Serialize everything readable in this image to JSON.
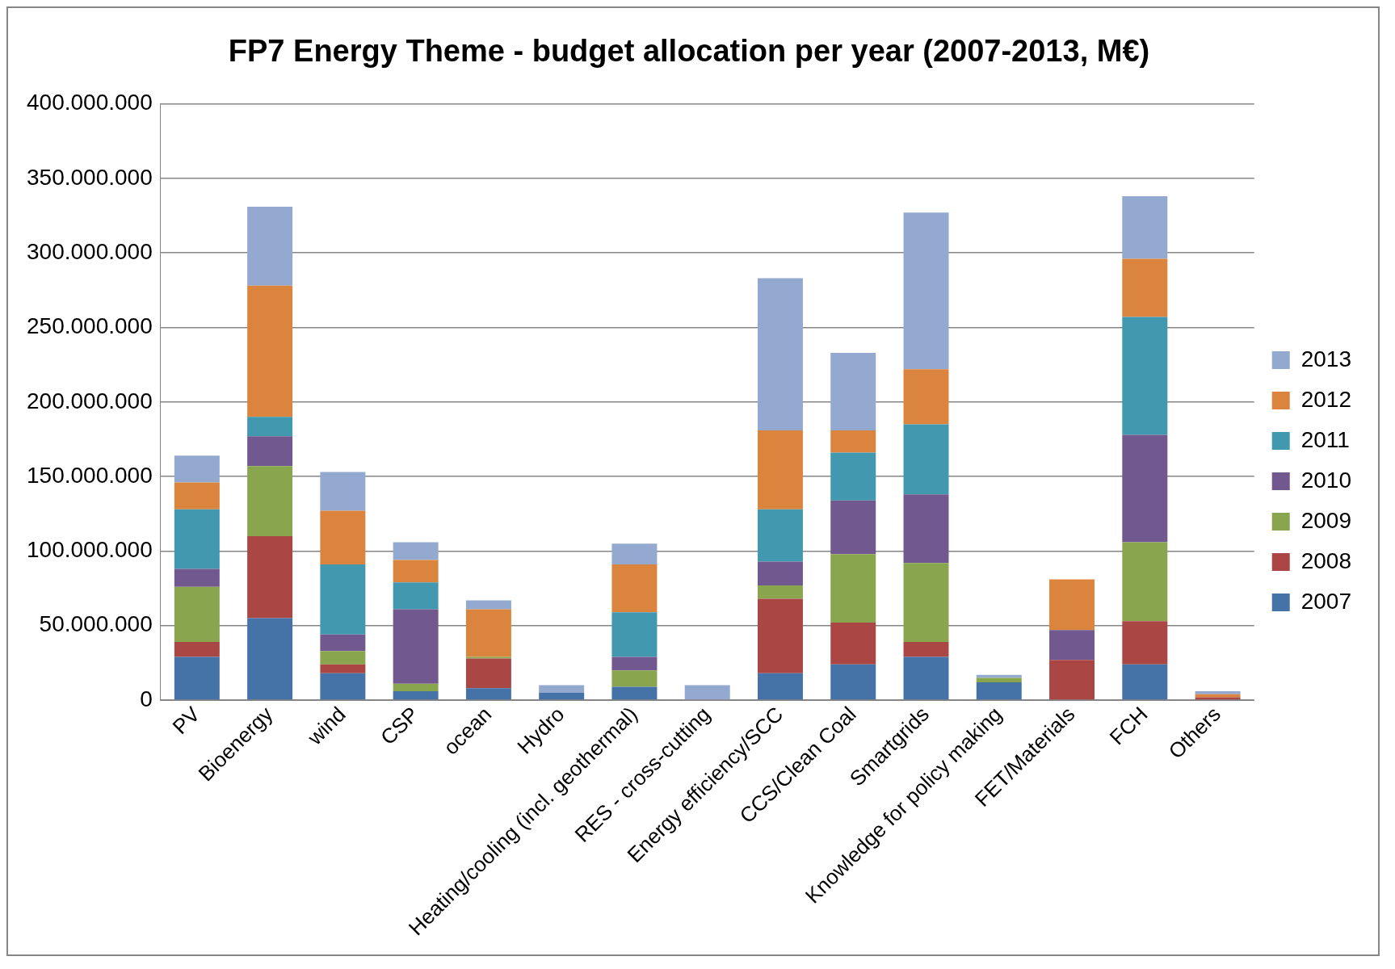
{
  "chart_data": {
    "type": "bar",
    "title": "FP7 Energy Theme - budget allocation per year (2007-2013, M€)",
    "stacked": true,
    "legend": "right",
    "grid": "y",
    "categories": [
      "PV",
      "Bioenergy",
      "wind",
      "CSP",
      "ocean",
      "Hydro",
      "Heating/cooling (incl. geothermal)",
      "RES - cross-cutting",
      "Energy efficiency/SCC",
      "CCS/Clean Coal",
      "Smartgrids",
      "Knowledge for policy making",
      "FET/Materials",
      "FCH",
      "Others"
    ],
    "ylim": [
      0,
      400000000
    ],
    "yticks": [
      0,
      {
        "value": 50000000,
        "label": "50.000.000"
      },
      {
        "value": 100000000,
        "label": "100.000.000"
      },
      {
        "value": 150000000,
        "label": "150.000.000"
      },
      {
        "value": 200000000,
        "label": "200.000.000"
      },
      {
        "value": 250000000,
        "label": "250.000.000"
      },
      {
        "value": 300000000,
        "label": "300.000.000"
      },
      {
        "value": 350000000,
        "label": "350.000.000"
      },
      {
        "value": 400000000,
        "label": "400.000.000"
      }
    ],
    "series": [
      {
        "name": "2007",
        "color": "#4572a7",
        "values": [
          29000000,
          55000000,
          18000000,
          6000000,
          8000000,
          5000000,
          9000000,
          0,
          18000000,
          24000000,
          29000000,
          12000000,
          0,
          24000000,
          0
        ]
      },
      {
        "name": "2008",
        "color": "#aa4643",
        "values": [
          10000000,
          55000000,
          6000000,
          0,
          20000000,
          0,
          0,
          0,
          50000000,
          28000000,
          10000000,
          0,
          27000000,
          29000000,
          2000000
        ]
      },
      {
        "name": "2009",
        "color": "#89a54e",
        "values": [
          37000000,
          47000000,
          9000000,
          5000000,
          1000000,
          0,
          11000000,
          0,
          9000000,
          46000000,
          53000000,
          3000000,
          0,
          53000000,
          0
        ]
      },
      {
        "name": "2010",
        "color": "#71588f",
        "values": [
          12000000,
          20000000,
          11000000,
          50000000,
          0,
          0,
          9000000,
          0,
          16000000,
          36000000,
          46000000,
          0,
          20000000,
          72000000,
          0
        ]
      },
      {
        "name": "2011",
        "color": "#4198af",
        "values": [
          40000000,
          13000000,
          47000000,
          18000000,
          0,
          0,
          30000000,
          0,
          35000000,
          32000000,
          47000000,
          0,
          0,
          79000000,
          0
        ]
      },
      {
        "name": "2012",
        "color": "#db843d",
        "values": [
          18000000,
          88000000,
          36000000,
          15000000,
          32000000,
          0,
          32000000,
          0,
          53000000,
          15000000,
          37000000,
          0,
          34000000,
          39000000,
          2000000
        ]
      },
      {
        "name": "2013",
        "color": "#93a9cf",
        "values": [
          18000000,
          53000000,
          26000000,
          12000000,
          6000000,
          5000000,
          14000000,
          10000000,
          102000000,
          52000000,
          105000000,
          2000000,
          0,
          42000000,
          2000000
        ]
      }
    ]
  }
}
